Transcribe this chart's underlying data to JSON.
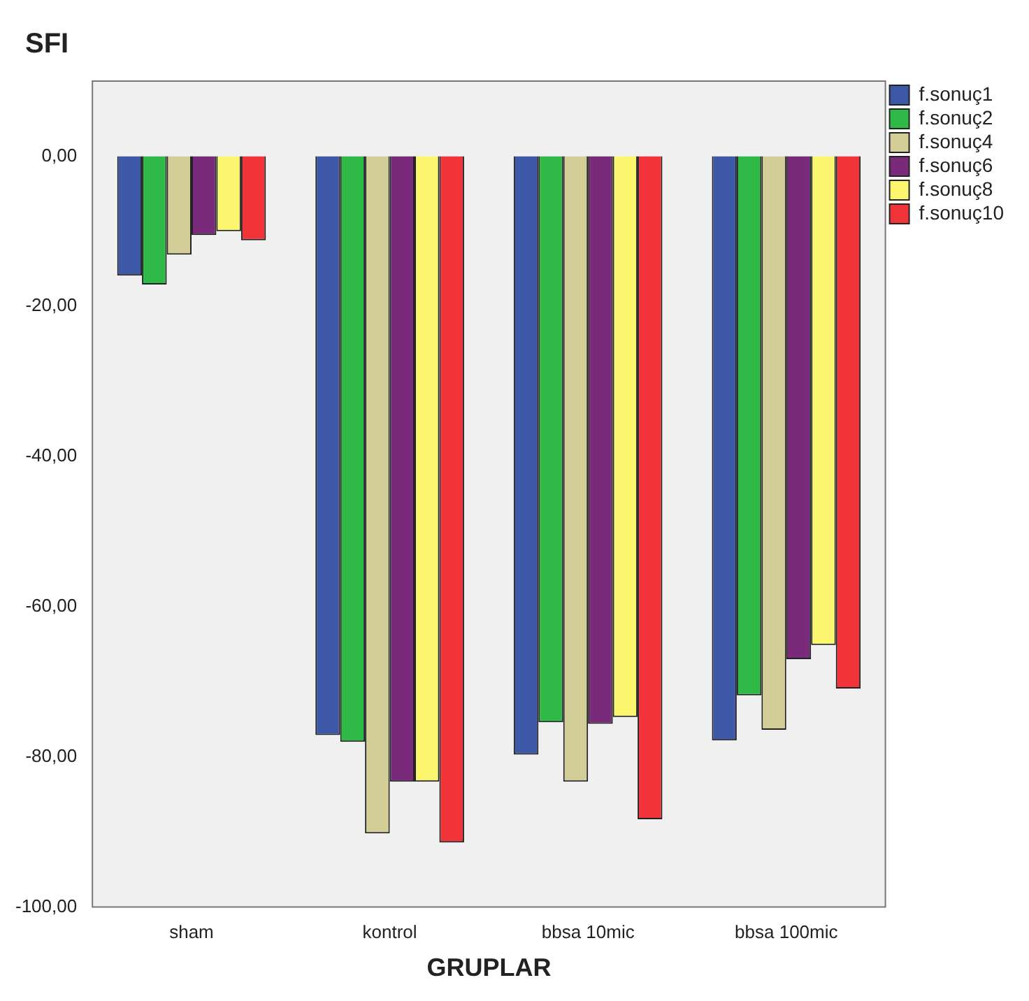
{
  "chart_data": {
    "type": "bar",
    "ylabel": "SFI",
    "xlabel": "GRUPLAR",
    "categories": [
      "sham",
      "kontrol",
      "bbsa 10mic",
      "bbsa 100mic"
    ],
    "series": [
      {
        "name": "f.sonuç1",
        "color": "#3e58a8",
        "values": [
          -15.9,
          -77.1,
          -79.7,
          -77.8
        ]
      },
      {
        "name": "f.sonuç2",
        "color": "#2fba48",
        "values": [
          -17.1,
          -78.0,
          -75.4,
          -71.8
        ]
      },
      {
        "name": "f.sonuç4",
        "color": "#d3ce98",
        "values": [
          -13.1,
          -90.2,
          -83.3,
          -76.4
        ]
      },
      {
        "name": "f.sonuç6",
        "color": "#7a2a7a",
        "values": [
          -10.5,
          -83.3,
          -75.6,
          -67.0
        ]
      },
      {
        "name": "f.sonuç8",
        "color": "#fcf66e",
        "values": [
          -10.0,
          -83.3,
          -74.7,
          -65.1
        ]
      },
      {
        "name": "f.sonuç10",
        "color": "#f0343a",
        "values": [
          -11.2,
          -91.4,
          -88.3,
          -70.9
        ]
      }
    ],
    "ylim": [
      -100,
      10
    ],
    "yticks": [
      {
        "value": -100,
        "label": "-100,00"
      },
      {
        "value": -80,
        "label": "-80,00"
      },
      {
        "value": -60,
        "label": "-60,00"
      },
      {
        "value": -40,
        "label": "-40,00"
      },
      {
        "value": -20,
        "label": "-20,00"
      },
      {
        "value": 0,
        "label": "0,00"
      }
    ],
    "grid": false,
    "legend": "top right"
  }
}
